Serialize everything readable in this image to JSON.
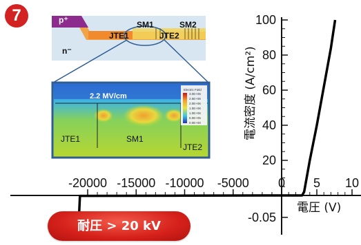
{
  "figure": {
    "panel_number": "7",
    "breakdown_label": "耐圧 > 20 kV"
  },
  "chart_data": {
    "type": "line",
    "xlabel": "電圧 (V)",
    "ylabel": "電流密度 (A/cm²)",
    "x_ticks": [
      {
        "value": -20000,
        "label": "-20000"
      },
      {
        "value": -15000,
        "label": "-15000"
      },
      {
        "value": -10000,
        "label": "-10000"
      },
      {
        "value": -5000,
        "label": "-5000"
      },
      {
        "value": 0,
        "label": "0"
      },
      {
        "value": 5,
        "label": "5"
      },
      {
        "value": 10,
        "label": "10"
      }
    ],
    "y_ticks": [
      {
        "value": -0.05,
        "label": "-0.05"
      },
      {
        "value": 20,
        "label": "20"
      },
      {
        "value": 40,
        "label": "40"
      },
      {
        "value": 60,
        "label": "60"
      },
      {
        "value": 80,
        "label": "80"
      },
      {
        "value": 100,
        "label": "100"
      }
    ],
    "axis_note": "x axis: reverse side (-20000 to 0 V) and forward side (0 to 10 V) on different scales; y axis: negative (0 to -0.05) and positive (0 to 100 A/cm²) on different scales",
    "series": [
      {
        "values_forward": [
          [
            0,
            0
          ],
          [
            2.9,
            0
          ],
          [
            3.2,
            2
          ],
          [
            4,
            20
          ],
          [
            5,
            40
          ],
          [
            6,
            62
          ],
          [
            7,
            84
          ],
          [
            7.6,
            100
          ]
        ],
        "values_reverse": [
          [
            -20900,
            -0.05
          ],
          [
            -20800,
            -0.001
          ],
          [
            -10000,
            -0.0005
          ],
          [
            0,
            0
          ]
        ]
      }
    ],
    "inset": {
      "structure_labels": {
        "p_plus": "p⁺",
        "n_minus": "n⁻",
        "jte1": "JTE1",
        "jte2": "JTE2",
        "sm1": "SM1",
        "sm2": "SM2"
      },
      "simulation_labels": {
        "field": "2.2 MV/cm",
        "jte1": "JTE1",
        "sm1": "SM1",
        "jte2": "JTE2"
      },
      "colorbar": {
        "title": "Electric Field",
        "ticks": [
          "3.0E+06",
          "2.5E+06",
          "2.0E+06",
          "1.5E+06",
          "1.0E+06",
          "5.0E+05",
          "0.0E+00"
        ]
      }
    }
  },
  "colors": {
    "badge": "#d32222",
    "pill": "#d5201a",
    "p_plus": "#8e2c8e",
    "jte_orange": "#f08a2c",
    "sm_band": "#f2d35a",
    "substrate": "#d7e6f1",
    "frame_blue": "#2f5d94"
  }
}
